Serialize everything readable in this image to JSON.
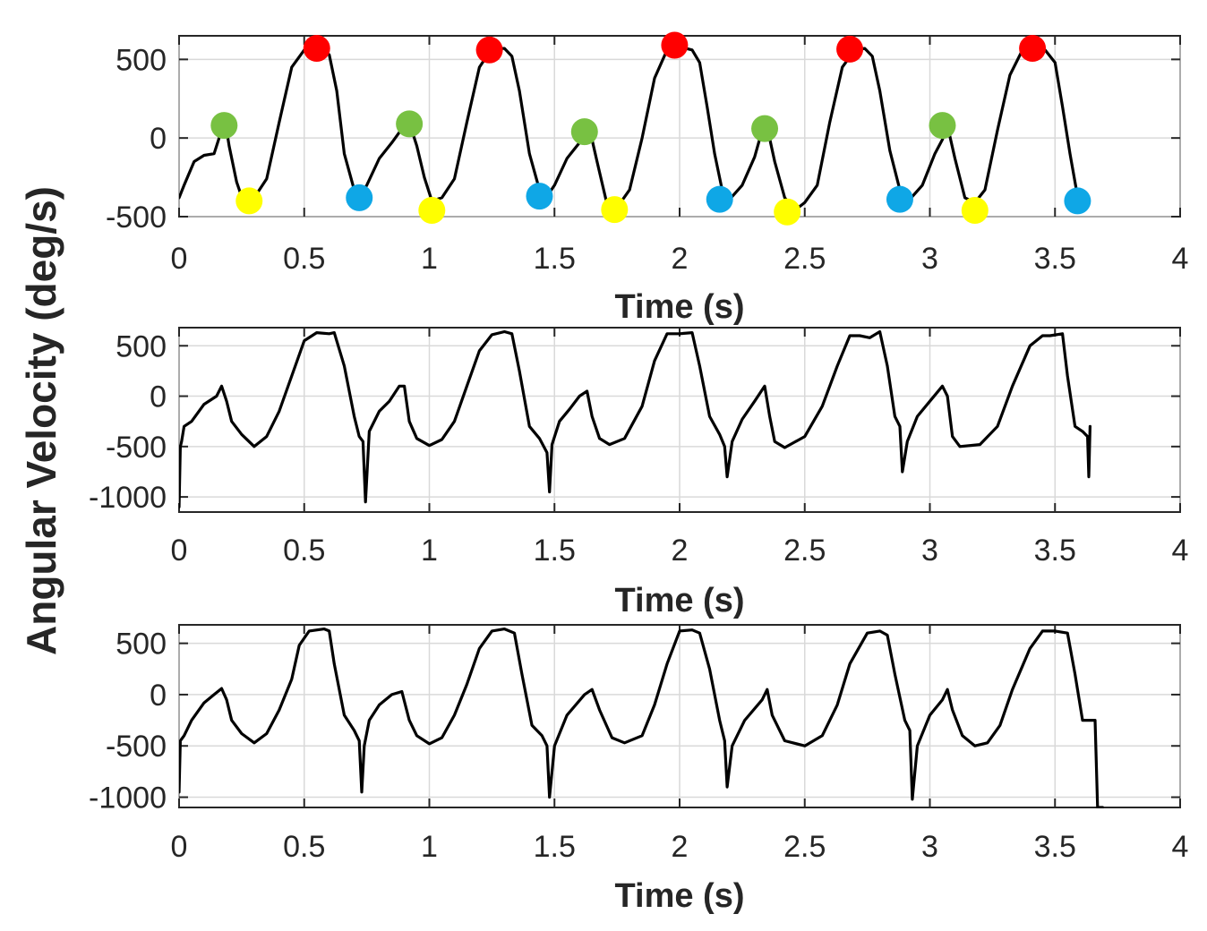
{
  "figure": {
    "ylabel": "Angular Velocity (deg/s)"
  },
  "chart_data": [
    {
      "type": "line",
      "title": "",
      "xlabel": "Time (s)",
      "ylabel": "",
      "xlim": [
        0,
        4
      ],
      "ylim": [
        -500,
        650
      ],
      "xticks": [
        0,
        0.5,
        1,
        1.5,
        2,
        2.5,
        3,
        3.5,
        4
      ],
      "xtick_labels": [
        "0",
        "0.5",
        "1",
        "1.5",
        "2",
        "2.5",
        "3",
        "3.5",
        "4"
      ],
      "yticks": [
        -500,
        0,
        500
      ],
      "ytick_labels": [
        "-500",
        "0",
        "500"
      ],
      "grid": true,
      "series": [
        {
          "name": "angular velocity",
          "color": "#000000",
          "x": [
            0,
            0.02,
            0.06,
            0.1,
            0.14,
            0.17,
            0.185,
            0.2,
            0.23,
            0.26,
            0.3,
            0.35,
            0.4,
            0.45,
            0.5,
            0.55,
            0.6,
            0.63,
            0.66,
            0.7,
            0.72,
            0.75,
            0.8,
            0.85,
            0.9,
            0.92,
            0.95,
            0.98,
            1.01,
            1.05,
            1.1,
            1.15,
            1.2,
            1.25,
            1.3,
            1.33,
            1.36,
            1.4,
            1.44,
            1.47,
            1.5,
            1.55,
            1.6,
            1.62,
            1.64,
            1.67,
            1.71,
            1.76,
            1.8,
            1.85,
            1.9,
            1.95,
            2.0,
            2.05,
            2.08,
            2.11,
            2.14,
            2.17,
            2.2,
            2.25,
            2.3,
            2.33,
            2.35,
            2.38,
            2.42,
            2.46,
            2.5,
            2.55,
            2.6,
            2.65,
            2.7,
            2.74,
            2.77,
            2.8,
            2.84,
            2.88,
            2.92,
            2.97,
            3.02,
            3.05,
            3.07,
            3.1,
            3.14,
            3.18,
            3.22,
            3.27,
            3.32,
            3.37,
            3.42,
            3.46,
            3.5,
            3.53,
            3.56,
            3.59
          ],
          "y": [
            -380,
            -300,
            -150,
            -110,
            -100,
            50,
            100,
            -50,
            -280,
            -420,
            -380,
            -260,
            100,
            450,
            560,
            580,
            530,
            300,
            -100,
            -330,
            -380,
            -300,
            -130,
            -30,
            80,
            100,
            -50,
            -250,
            -400,
            -380,
            -260,
            100,
            450,
            570,
            570,
            520,
            300,
            -100,
            -330,
            -370,
            -300,
            -130,
            -30,
            60,
            60,
            -150,
            -420,
            -420,
            -330,
            0,
            380,
            560,
            580,
            560,
            480,
            200,
            -100,
            -330,
            -390,
            -300,
            -120,
            50,
            70,
            -150,
            -380,
            -460,
            -410,
            -300,
            100,
            450,
            560,
            570,
            520,
            300,
            -80,
            -330,
            -390,
            -300,
            -100,
            -10,
            80,
            -130,
            -380,
            -410,
            -330,
            50,
            400,
            560,
            570,
            560,
            480,
            200,
            -100,
            -370
          ]
        }
      ],
      "markers": [
        {
          "name": "green",
          "color": "#78c142",
          "x": [
            0.18,
            0.92,
            1.62,
            2.34,
            3.05
          ],
          "y": [
            80,
            90,
            40,
            60,
            80
          ]
        },
        {
          "name": "red",
          "color": "#ff0000",
          "x": [
            0.55,
            1.24,
            1.98,
            2.68,
            3.41
          ],
          "y": [
            570,
            560,
            590,
            565,
            570
          ]
        },
        {
          "name": "yellow",
          "color": "#ffff00",
          "x": [
            0.28,
            1.01,
            1.74,
            2.43,
            3.18
          ],
          "y": [
            -400,
            -460,
            -455,
            -470,
            -460
          ]
        },
        {
          "name": "blue",
          "color": "#0fa7e6",
          "x": [
            0.72,
            1.44,
            2.16,
            2.88,
            3.59
          ],
          "y": [
            -380,
            -370,
            -390,
            -390,
            -400
          ]
        }
      ]
    },
    {
      "type": "line",
      "title": "",
      "xlabel": "Time (s)",
      "ylabel": "",
      "xlim": [
        0,
        4
      ],
      "ylim": [
        -1150,
        680
      ],
      "xticks": [
        0,
        0.5,
        1,
        1.5,
        2,
        2.5,
        3,
        3.5,
        4
      ],
      "xtick_labels": [
        "0",
        "0.5",
        "1",
        "1.5",
        "2",
        "2.5",
        "3",
        "3.5",
        "4"
      ],
      "yticks": [
        -1000,
        -500,
        0,
        500
      ],
      "ytick_labels": [
        "-1000",
        "-500",
        "0",
        "500"
      ],
      "grid": true,
      "series": [
        {
          "name": "angular velocity",
          "color": "#000000",
          "x": [
            0,
            0.005,
            0.01,
            0.02,
            0.05,
            0.1,
            0.15,
            0.17,
            0.19,
            0.21,
            0.25,
            0.3,
            0.35,
            0.4,
            0.45,
            0.5,
            0.55,
            0.6,
            0.62,
            0.66,
            0.7,
            0.72,
            0.735,
            0.745,
            0.76,
            0.8,
            0.84,
            0.88,
            0.9,
            0.92,
            0.95,
            1.0,
            1.05,
            1.1,
            1.15,
            1.2,
            1.25,
            1.3,
            1.33,
            1.36,
            1.4,
            1.44,
            1.47,
            1.48,
            1.49,
            1.52,
            1.56,
            1.6,
            1.63,
            1.65,
            1.68,
            1.72,
            1.78,
            1.85,
            1.9,
            1.95,
            2.0,
            2.05,
            2.08,
            2.12,
            2.16,
            2.18,
            2.19,
            2.21,
            2.25,
            2.3,
            2.34,
            2.36,
            2.38,
            2.42,
            2.5,
            2.57,
            2.63,
            2.68,
            2.72,
            2.76,
            2.8,
            2.83,
            2.86,
            2.88,
            2.89,
            2.91,
            2.95,
            3.0,
            3.05,
            3.07,
            3.09,
            3.12,
            3.2,
            3.27,
            3.33,
            3.4,
            3.45,
            3.48,
            3.53,
            3.55,
            3.58,
            3.61,
            3.63,
            3.635,
            3.64
          ],
          "y": [
            -1100,
            -500,
            -450,
            -300,
            -250,
            -80,
            0,
            100,
            -50,
            -250,
            -380,
            -500,
            -400,
            -150,
            200,
            550,
            630,
            620,
            630,
            300,
            -200,
            -400,
            -450,
            -1050,
            -350,
            -150,
            -50,
            100,
            100,
            -250,
            -420,
            -490,
            -430,
            -250,
            100,
            450,
            610,
            640,
            620,
            250,
            -300,
            -420,
            -560,
            -950,
            -480,
            -250,
            -130,
            0,
            50,
            -200,
            -420,
            -480,
            -420,
            -100,
            350,
            620,
            620,
            630,
            300,
            -200,
            -380,
            -500,
            -800,
            -450,
            -230,
            -50,
            100,
            -200,
            -450,
            -510,
            -400,
            -100,
            300,
            600,
            600,
            580,
            640,
            300,
            -200,
            -300,
            -750,
            -450,
            -200,
            -50,
            100,
            0,
            -400,
            -500,
            -480,
            -300,
            100,
            500,
            600,
            600,
            620,
            200,
            -300,
            -350,
            -400,
            -800,
            -300
          ]
        }
      ]
    },
    {
      "type": "line",
      "title": "",
      "xlabel": "Time (s)",
      "ylabel": "",
      "xlim": [
        0,
        4
      ],
      "ylim": [
        -1100,
        680
      ],
      "xticks": [
        0,
        0.5,
        1,
        1.5,
        2,
        2.5,
        3,
        3.5,
        4
      ],
      "xtick_labels": [
        "0",
        "0.5",
        "1",
        "1.5",
        "2",
        "2.5",
        "3",
        "3.5",
        "4"
      ],
      "yticks": [
        -1000,
        -500,
        0,
        500
      ],
      "ytick_labels": [
        "-1000",
        "-500",
        "0",
        "500"
      ],
      "grid": true,
      "series": [
        {
          "name": "angular velocity",
          "color": "#000000",
          "x": [
            0,
            0.005,
            0.02,
            0.05,
            0.1,
            0.14,
            0.17,
            0.19,
            0.21,
            0.25,
            0.3,
            0.35,
            0.4,
            0.45,
            0.48,
            0.52,
            0.58,
            0.6,
            0.62,
            0.66,
            0.7,
            0.72,
            0.73,
            0.74,
            0.76,
            0.8,
            0.85,
            0.89,
            0.92,
            0.95,
            1.0,
            1.05,
            1.1,
            1.15,
            1.2,
            1.25,
            1.3,
            1.34,
            1.37,
            1.41,
            1.45,
            1.47,
            1.48,
            1.5,
            1.55,
            1.62,
            1.65,
            1.68,
            1.73,
            1.78,
            1.85,
            1.9,
            1.95,
            2.0,
            2.05,
            2.08,
            2.12,
            2.16,
            2.18,
            2.19,
            2.21,
            2.26,
            2.33,
            2.35,
            2.37,
            2.42,
            2.5,
            2.57,
            2.63,
            2.68,
            2.75,
            2.8,
            2.83,
            2.86,
            2.9,
            2.92,
            2.93,
            2.95,
            3.0,
            3.05,
            3.07,
            3.09,
            3.13,
            3.18,
            3.23,
            3.28,
            3.33,
            3.4,
            3.45,
            3.5,
            3.55,
            3.58,
            3.61,
            3.64,
            3.66,
            3.67,
            3.69
          ],
          "y": [
            -950,
            -450,
            -400,
            -250,
            -80,
            0,
            60,
            -50,
            -250,
            -380,
            -470,
            -380,
            -150,
            150,
            480,
            620,
            640,
            620,
            300,
            -200,
            -350,
            -450,
            -950,
            -500,
            -250,
            -100,
            0,
            30,
            -250,
            -400,
            -480,
            -420,
            -200,
            100,
            450,
            620,
            640,
            600,
            200,
            -300,
            -400,
            -500,
            -1000,
            -500,
            -200,
            0,
            50,
            -150,
            -420,
            -470,
            -400,
            -100,
            300,
            620,
            630,
            600,
            250,
            -250,
            -450,
            -900,
            -500,
            -250,
            -50,
            50,
            -200,
            -450,
            -500,
            -400,
            -100,
            300,
            600,
            620,
            580,
            200,
            -250,
            -350,
            -1020,
            -500,
            -200,
            -50,
            50,
            -150,
            -400,
            -500,
            -470,
            -300,
            50,
            450,
            620,
            620,
            600,
            200,
            -250,
            -250,
            -250,
            -1100,
            -1100
          ]
        }
      ]
    }
  ]
}
